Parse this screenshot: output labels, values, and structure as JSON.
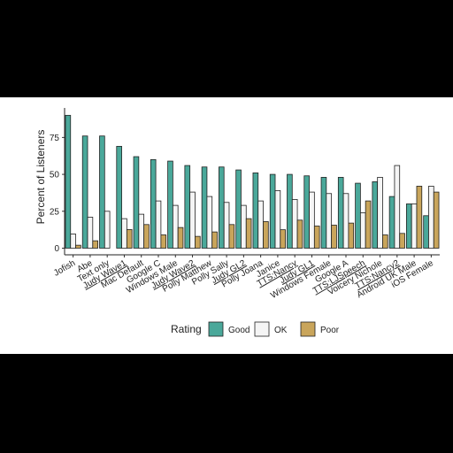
{
  "chart_data": {
    "type": "bar",
    "y_label": "Percent of Listeners",
    "legend_title": "Rating",
    "categories": [
      "Jofish",
      "Abe",
      "Text only",
      "Judy Wave1",
      "Mac Default",
      "Google C",
      "Windows Male",
      "Judy Wave2",
      "Polly Matthew",
      "Polly Sally",
      "Judy GL2",
      "Polly Joana",
      "Janice",
      "TTS:Nancy",
      "Judy GL1",
      "Windows Female",
      "Google A",
      "TTS:LJSpeech",
      "Voicery Nichole",
      "TTS:Nancy2",
      "Android UK Male",
      "iOS Female"
    ],
    "underlined": [
      false,
      false,
      false,
      true,
      false,
      false,
      false,
      true,
      false,
      false,
      true,
      false,
      false,
      true,
      true,
      false,
      false,
      true,
      false,
      true,
      false,
      false
    ],
    "series": [
      {
        "name": "Good",
        "color": "#4aa89a",
        "values": [
          90,
          76,
          76,
          69,
          62,
          60,
          59,
          56,
          55,
          55,
          53,
          51,
          50,
          50,
          49,
          48,
          48,
          44,
          45,
          35,
          30,
          22
        ]
      },
      {
        "name": "OK",
        "color": "#f5f5f5",
        "values": [
          9.6,
          21,
          25,
          20,
          23,
          32,
          29,
          38,
          35,
          31,
          29,
          32,
          39,
          33,
          38,
          37,
          37,
          24,
          48,
          56,
          30,
          42
        ]
      },
      {
        "name": "Poor",
        "color": "#c9a55b",
        "values": [
          2,
          5,
          0,
          12.6,
          16,
          9,
          14,
          8,
          11,
          16,
          20,
          18,
          12.5,
          19,
          15,
          15.6,
          17,
          32,
          9,
          10,
          42,
          38
        ]
      }
    ],
    "ylim": [
      -4.5,
      95
    ],
    "yticks": [
      0,
      25,
      50,
      75
    ],
    "legend": "bottom",
    "grid": false
  }
}
